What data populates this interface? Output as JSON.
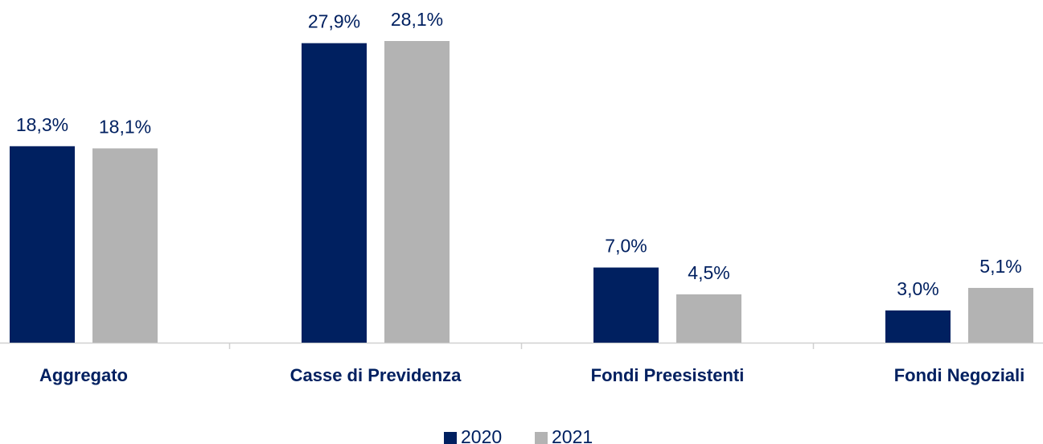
{
  "chart_data": {
    "type": "bar",
    "categories": [
      "Aggregato",
      "Casse di Previdenza",
      "Fondi Preesistenti",
      "Fondi Negoziali"
    ],
    "series": [
      {
        "name": "2020",
        "color": "#002060",
        "values": [
          18.3,
          27.9,
          7.0,
          3.0
        ],
        "value_labels": [
          "18,3%",
          "27,9%",
          "7,0%",
          "3,0%"
        ]
      },
      {
        "name": "2021",
        "color": "#b3b3b3",
        "values": [
          18.1,
          28.1,
          4.5,
          5.1
        ],
        "value_labels": [
          "18,1%",
          "28,1%",
          "4,5%",
          "5,1%"
        ]
      }
    ],
    "legend": "bottom"
  }
}
